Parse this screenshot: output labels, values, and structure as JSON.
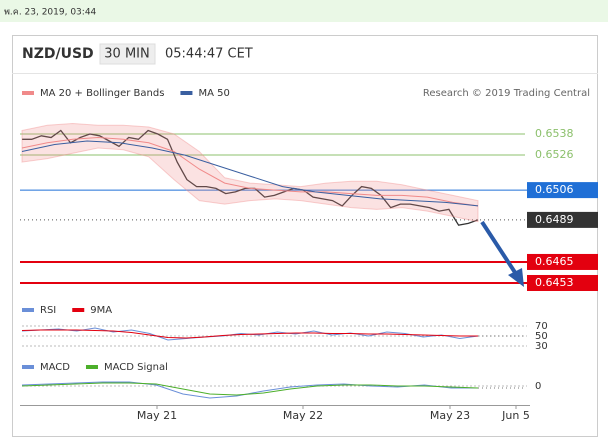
{
  "top_bar": {
    "timestamp": "พ.ค. 23, 2019, 03:44"
  },
  "header": {
    "symbol": "NZD/USD",
    "interval": "30 MIN",
    "time": "05:44:47 CET"
  },
  "credit": "Research © 2019 Trading Central",
  "x_labels": [
    "May 21",
    "May 22",
    "May 23",
    "Jun 5"
  ],
  "chart_data": [
    {
      "type": "line",
      "ylim": [
        0.6449,
        0.6546
      ],
      "series": [
        {
          "color": "#333333",
          "values": [
            0.6535,
            0.6535,
            0.6537,
            0.6536,
            0.654,
            0.6533,
            0.6536,
            0.6538,
            0.6537,
            0.6534,
            0.6531,
            0.6536,
            0.6535,
            0.654,
            0.6538,
            0.6535,
            0.6522,
            0.6512,
            0.6508,
            0.6508,
            0.6507,
            0.6504,
            0.6505,
            0.6507,
            0.6507,
            0.6502,
            0.6503,
            0.6505,
            0.6507,
            0.6506,
            0.6502,
            0.6501,
            0.65,
            0.6497,
            0.6503,
            0.6508,
            0.6507,
            0.6503,
            0.6496,
            0.6498,
            0.6498,
            0.6497,
            0.6496,
            0.6494,
            0.6495,
            0.6486,
            0.6487,
            0.6489
          ]
        },
        {
          "name": "MA 20 + Bollinger Bands",
          "color": "#f08a8a",
          "values": [
            0.653,
            0.6533,
            0.6535,
            0.6536,
            0.6535,
            0.6533,
            0.6528,
            0.6518,
            0.651,
            0.6507,
            0.6506,
            0.6505,
            0.6505,
            0.6504,
            0.6503,
            0.6503,
            0.6502,
            0.6499,
            0.6497
          ],
          "upper": [
            0.654,
            0.6543,
            0.6544,
            0.6543,
            0.6543,
            0.6542,
            0.6538,
            0.6528,
            0.6513,
            0.651,
            0.6509,
            0.6508,
            0.651,
            0.6511,
            0.6511,
            0.6509,
            0.6506,
            0.6503,
            0.65
          ],
          "lower": [
            0.6522,
            0.6524,
            0.6527,
            0.653,
            0.6529,
            0.6525,
            0.6512,
            0.65,
            0.6498,
            0.65,
            0.6501,
            0.65,
            0.6498,
            0.6496,
            0.6495,
            0.6496,
            0.6494,
            0.6491,
            0.6488
          ]
        },
        {
          "name": "MA 50",
          "color": "#3a5fa0",
          "values": [
            0.6528,
            0.6532,
            0.6534,
            0.6533,
            0.653,
            0.6526,
            0.652,
            0.6514,
            0.6508,
            0.6505,
            0.6503,
            0.6501,
            0.65,
            0.6499,
            0.6497
          ]
        }
      ],
      "levels": [
        {
          "value": 0.6538,
          "color": "#8cc06c",
          "boxed": false,
          "dashed": false
        },
        {
          "value": 0.6526,
          "color": "#8cc06c",
          "boxed": false,
          "dashed": false
        },
        {
          "value": 0.6506,
          "color": "#1f6fd6",
          "boxed": true,
          "dashed": false
        },
        {
          "value": 0.6489,
          "color": "#333333",
          "boxed": true,
          "dashed": true
        },
        {
          "value": 0.6465,
          "color": "#e3000f",
          "boxed": true,
          "dashed": false
        },
        {
          "value": 0.6453,
          "color": "#e3000f",
          "boxed": true,
          "dashed": false
        }
      ]
    },
    {
      "type": "line",
      "ylim": [
        22,
        86
      ],
      "yticks": [
        30,
        50,
        70
      ],
      "series": [
        {
          "name": "RSI",
          "color": "#6a8fd8",
          "values": [
            60,
            62,
            64,
            60,
            66,
            58,
            62,
            55,
            42,
            45,
            48,
            50,
            55,
            52,
            58,
            54,
            60,
            52,
            56,
            50,
            58,
            55,
            48,
            52,
            45,
            50
          ]
        },
        {
          "name": "9MA",
          "color": "#e3000f",
          "values": [
            61,
            62,
            62,
            62,
            61,
            60,
            57,
            52,
            47,
            46,
            48,
            51,
            53,
            54,
            55,
            56,
            56,
            55,
            55,
            54,
            54,
            53,
            52,
            51,
            50,
            50
          ]
        }
      ]
    },
    {
      "type": "line",
      "ylim": [
        -0.0014,
        0.0011
      ],
      "yticks": [
        0
      ],
      "series": [
        {
          "name": "MACD",
          "color": "#6a8fd8",
          "values": [
            0.0001,
            0.0002,
            0.0003,
            0.0004,
            0.0004,
            0.0001,
            -0.0008,
            -0.0012,
            -0.001,
            -0.0005,
            -0.0001,
            0.0001,
            0.0002,
            0.0,
            -0.0001,
            0.0001,
            -0.0002,
            -0.0002
          ]
        },
        {
          "name": "MACD Signal",
          "color": "#4caf2a",
          "values": [
            0.0,
            0.0001,
            0.0002,
            0.0003,
            0.0003,
            0.0002,
            -0.0003,
            -0.0008,
            -0.0009,
            -0.0007,
            -0.0003,
            0.0,
            0.0001,
            0.0001,
            0.0,
            0.0,
            -0.0001,
            -0.0002
          ]
        }
      ]
    }
  ]
}
